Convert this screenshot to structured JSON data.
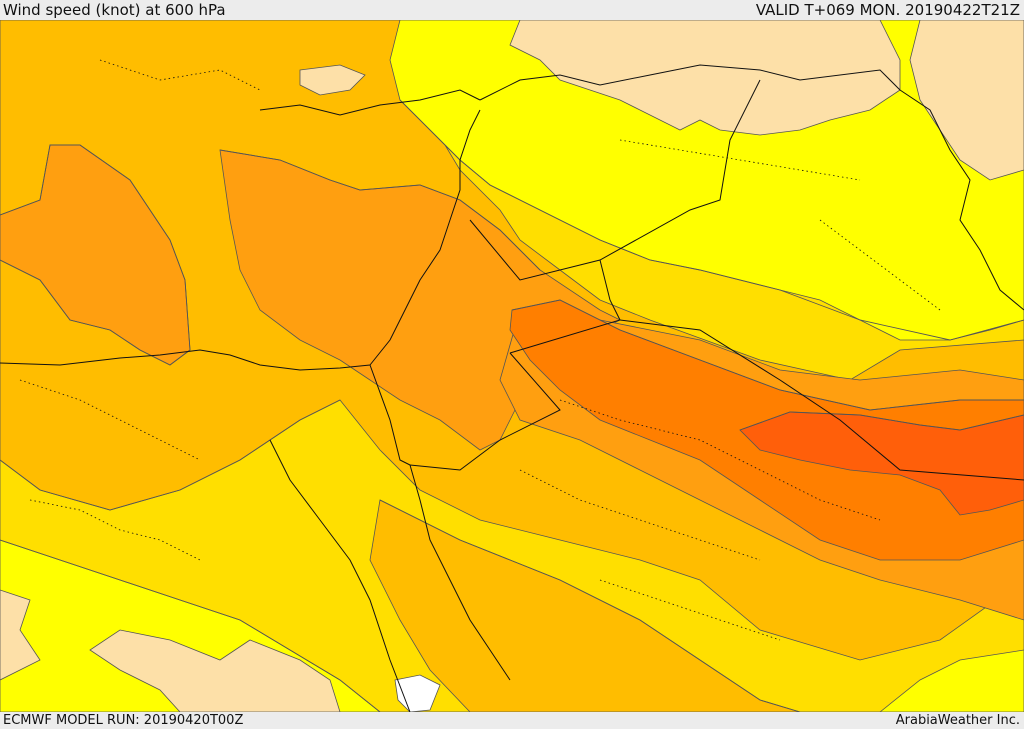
{
  "header": {
    "title": "Wind speed (knot) at 600 hPa",
    "valid": "VALID T+069 MON. 20190422T21Z"
  },
  "footer": {
    "model_run": "ECMWF MODEL RUN: 20190420T00Z",
    "credit": "ArabiaWeather Inc."
  },
  "palette": {
    "c1": "#fde0a8",
    "c2": "#ffff00",
    "c3": "#ffdf00",
    "c4": "#ffbd00",
    "c5": "#ff9f10",
    "c6": "#ff7f00",
    "c7": "#ff5f0a",
    "land_border": "#111111",
    "contour": "#555555",
    "white": "#ffffff"
  }
}
